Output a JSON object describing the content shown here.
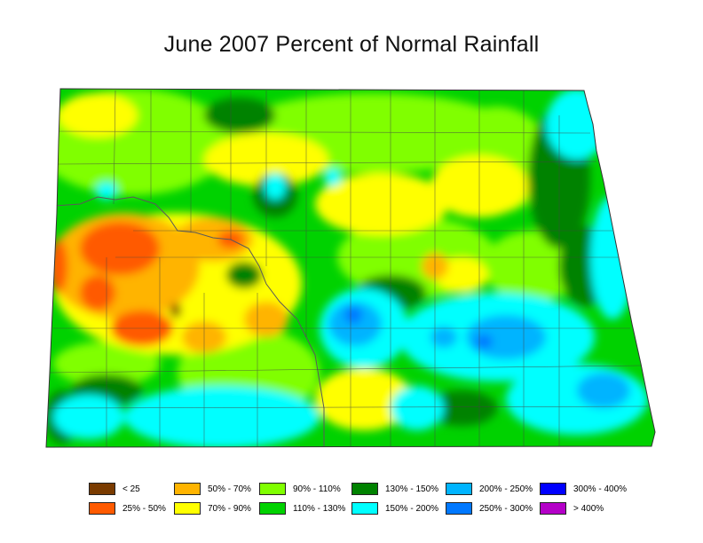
{
  "title": "June 2007 Percent of Normal Rainfall",
  "legend": {
    "items": [
      {
        "label": "< 25",
        "color": "#7a3b00"
      },
      {
        "label": "25% - 50%",
        "color": "#ff5a00"
      },
      {
        "label": "50% - 70%",
        "color": "#ffb400"
      },
      {
        "label": "70% - 90%",
        "color": "#ffff00"
      },
      {
        "label": "90% - 110%",
        "color": "#80ff00"
      },
      {
        "label": "110% - 130%",
        "color": "#00d200"
      },
      {
        "label": "130% - 150%",
        "color": "#008200"
      },
      {
        "label": "150% - 200%",
        "color": "#00ffff"
      },
      {
        "label": "200% - 250%",
        "color": "#00b4ff"
      },
      {
        "label": "250% - 300%",
        "color": "#0078ff"
      },
      {
        "label": "300% - 400%",
        "color": "#0000ff"
      },
      {
        "label": "> 400%",
        "color": "#b400c8"
      }
    ]
  }
}
